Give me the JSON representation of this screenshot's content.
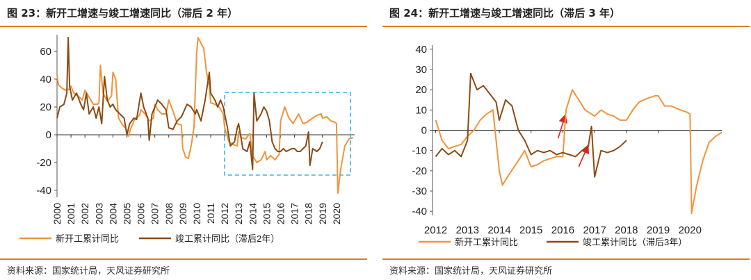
{
  "charts": [
    {
      "title": "图 23：新开工增速与竣工增速同比（滞后 2 年）",
      "source": "资料来源：国家统计局，天风证券研究所"
    },
    {
      "title": "图 24：新开工增速与竣工增速同比（滞后 3 年）",
      "source": "资料来源：国家统计局，天风证券研究所"
    }
  ],
  "colors": {
    "accent": "#e07b1f",
    "series_new": "#f0943a",
    "series_done": "#8b4a14",
    "highlight_box": "#3bb3e0",
    "arrow": "#e0201a"
  },
  "chart_data": [
    {
      "type": "line",
      "title": "",
      "x_ticks": [
        "2000",
        "2001",
        "2002",
        "2003",
        "2004",
        "2005",
        "2006",
        "2007",
        "2008",
        "2009",
        "2010",
        "2011",
        "2012",
        "2013",
        "2014",
        "2015",
        "2016",
        "2017",
        "2018",
        "2019",
        "2020"
      ],
      "y_ticks": [
        "60",
        "40",
        "20",
        "0",
        "-20",
        "-40"
      ],
      "ylim": [
        -45,
        72
      ],
      "xlim": [
        2000,
        2021.3
      ],
      "legend_position": "bottom",
      "annotation": "dashed highlight box 2012–2021",
      "series": [
        {
          "name": "新开工累计同比",
          "points": [
            [
              2000.0,
              43
            ],
            [
              2000.1,
              36
            ],
            [
              2000.3,
              34
            ],
            [
              2000.6,
              32
            ],
            [
              2000.9,
              33
            ],
            [
              2001.0,
              35
            ],
            [
              2001.2,
              30
            ],
            [
              2001.5,
              28
            ],
            [
              2001.8,
              25
            ],
            [
              2002.0,
              32
            ],
            [
              2002.3,
              27
            ],
            [
              2002.6,
              22
            ],
            [
              2002.9,
              22
            ],
            [
              2003.0,
              23
            ],
            [
              2003.1,
              50
            ],
            [
              2003.3,
              30
            ],
            [
              2003.6,
              24
            ],
            [
              2003.9,
              28
            ],
            [
              2004.0,
              45
            ],
            [
              2004.2,
              40
            ],
            [
              2004.4,
              12
            ],
            [
              2004.7,
              7
            ],
            [
              2004.9,
              5
            ],
            [
              2005.0,
              1
            ],
            [
              2005.1,
              -1
            ],
            [
              2005.3,
              5
            ],
            [
              2005.6,
              12
            ],
            [
              2005.9,
              14
            ],
            [
              2006.0,
              18
            ],
            [
              2006.3,
              15
            ],
            [
              2006.6,
              10
            ],
            [
              2006.9,
              12
            ],
            [
              2007.0,
              22
            ],
            [
              2007.2,
              18
            ],
            [
              2007.5,
              15
            ],
            [
              2007.8,
              15
            ],
            [
              2008.0,
              25
            ],
            [
              2008.3,
              17
            ],
            [
              2008.6,
              8
            ],
            [
              2008.9,
              7
            ],
            [
              2009.0,
              -10
            ],
            [
              2009.2,
              -16
            ],
            [
              2009.4,
              -17
            ],
            [
              2009.6,
              -8
            ],
            [
              2009.8,
              5
            ],
            [
              2010.0,
              60
            ],
            [
              2010.1,
              70
            ],
            [
              2010.3,
              66
            ],
            [
              2010.5,
              62
            ],
            [
              2010.7,
              45
            ],
            [
              2010.9,
              35
            ],
            [
              2011.0,
              23
            ],
            [
              2011.3,
              22
            ],
            [
              2011.6,
              20
            ],
            [
              2011.9,
              15
            ],
            [
              2012.0,
              5
            ],
            [
              2012.3,
              -5
            ],
            [
              2012.6,
              -7
            ],
            [
              2012.9,
              -8
            ],
            [
              2013.0,
              2
            ],
            [
              2013.2,
              -2
            ],
            [
              2013.5,
              -3
            ],
            [
              2013.8,
              1
            ],
            [
              2014.0,
              -15
            ],
            [
              2014.3,
              -20
            ],
            [
              2014.6,
              -18
            ],
            [
              2014.9,
              -12
            ],
            [
              2015.0,
              -18
            ],
            [
              2015.3,
              -15
            ],
            [
              2015.6,
              -18
            ],
            [
              2015.9,
              -14
            ],
            [
              2016.0,
              10
            ],
            [
              2016.3,
              20
            ],
            [
              2016.6,
              12
            ],
            [
              2016.9,
              8
            ],
            [
              2017.0,
              10
            ],
            [
              2017.3,
              15
            ],
            [
              2017.6,
              8
            ],
            [
              2017.9,
              9
            ],
            [
              2018.0,
              10
            ],
            [
              2018.3,
              12
            ],
            [
              2018.6,
              14
            ],
            [
              2018.9,
              15
            ],
            [
              2019.0,
              12
            ],
            [
              2019.3,
              13
            ],
            [
              2019.6,
              10
            ],
            [
              2019.9,
              9
            ],
            [
              2020.0,
              8
            ],
            [
              2020.1,
              -42
            ],
            [
              2020.3,
              -25
            ],
            [
              2020.6,
              -8
            ],
            [
              2020.9,
              -3
            ],
            [
              2021.2,
              -2
            ]
          ]
        },
        {
          "name": "竣工累计同比（滞后2年）",
          "points": [
            [
              2000.0,
              12
            ],
            [
              2000.2,
              20
            ],
            [
              2000.5,
              22
            ],
            [
              2000.7,
              30
            ],
            [
              2000.8,
              70
            ],
            [
              2000.9,
              35
            ],
            [
              2001.1,
              25
            ],
            [
              2001.4,
              30
            ],
            [
              2001.7,
              22
            ],
            [
              2001.9,
              18
            ],
            [
              2002.1,
              30
            ],
            [
              2002.3,
              15
            ],
            [
              2002.6,
              20
            ],
            [
              2002.8,
              12
            ],
            [
              2003.0,
              20
            ],
            [
              2003.2,
              8
            ],
            [
              2003.4,
              42
            ],
            [
              2003.6,
              25
            ],
            [
              2003.8,
              20
            ],
            [
              2004.0,
              22
            ],
            [
              2004.2,
              18
            ],
            [
              2004.5,
              15
            ],
            [
              2004.8,
              12
            ],
            [
              2005.0,
              0
            ],
            [
              2005.2,
              8
            ],
            [
              2005.5,
              12
            ],
            [
              2005.7,
              11
            ],
            [
              2006.0,
              30
            ],
            [
              2006.2,
              20
            ],
            [
              2006.5,
              12
            ],
            [
              2006.6,
              -4
            ],
            [
              2006.8,
              15
            ],
            [
              2007.0,
              20
            ],
            [
              2007.2,
              25
            ],
            [
              2007.5,
              22
            ],
            [
              2007.8,
              18
            ],
            [
              2008.0,
              5
            ],
            [
              2008.3,
              4
            ],
            [
              2008.6,
              10
            ],
            [
              2008.9,
              13
            ],
            [
              2009.0,
              15
            ],
            [
              2009.3,
              22
            ],
            [
              2009.6,
              20
            ],
            [
              2009.9,
              15
            ],
            [
              2010.0,
              18
            ],
            [
              2010.3,
              10
            ],
            [
              2010.6,
              25
            ],
            [
              2010.9,
              45
            ],
            [
              2011.0,
              30
            ],
            [
              2011.3,
              25
            ],
            [
              2011.5,
              20
            ],
            [
              2011.7,
              25
            ],
            [
              2011.9,
              20
            ],
            [
              2012.0,
              15
            ],
            [
              2012.2,
              5
            ],
            [
              2012.4,
              -8
            ],
            [
              2012.7,
              -5
            ],
            [
              2012.9,
              5
            ],
            [
              2013.0,
              8
            ],
            [
              2013.3,
              -10
            ],
            [
              2013.6,
              -12
            ],
            [
              2013.8,
              -5
            ],
            [
              2014.0,
              -25
            ],
            [
              2014.1,
              30
            ],
            [
              2014.3,
              10
            ],
            [
              2014.6,
              15
            ],
            [
              2014.8,
              20
            ],
            [
              2015.0,
              17
            ],
            [
              2015.2,
              10
            ],
            [
              2015.4,
              -5
            ],
            [
              2015.6,
              -10
            ],
            [
              2015.8,
              -12
            ],
            [
              2016.0,
              -12
            ],
            [
              2016.2,
              -10
            ],
            [
              2016.4,
              -12
            ],
            [
              2016.6,
              -11
            ],
            [
              2016.8,
              -10
            ],
            [
              2017.0,
              -10
            ],
            [
              2017.2,
              -12
            ],
            [
              2017.4,
              -12
            ],
            [
              2017.6,
              -10
            ],
            [
              2017.8,
              -8
            ],
            [
              2018.0,
              2
            ],
            [
              2018.1,
              -22
            ],
            [
              2018.3,
              -10
            ],
            [
              2018.6,
              -12
            ],
            [
              2018.8,
              -10
            ],
            [
              2019.0,
              -5
            ]
          ]
        }
      ]
    },
    {
      "type": "line",
      "title": "",
      "x_ticks": [
        "2012",
        "2013",
        "2014",
        "2015",
        "2016",
        "2017",
        "2018",
        "2019",
        "2020"
      ],
      "y_ticks": [
        "40",
        "30",
        "20",
        "10",
        "0",
        "-10",
        "-20",
        "-30",
        "-40"
      ],
      "ylim": [
        -42,
        42
      ],
      "xlim": [
        2011.9,
        2021.0
      ],
      "legend_position": "bottom",
      "annotation": "two red arrows near 2016",
      "series": [
        {
          "name": "新开工累计同比",
          "points": [
            [
              2012.0,
              5
            ],
            [
              2012.2,
              -5
            ],
            [
              2012.4,
              -9
            ],
            [
              2012.6,
              -8
            ],
            [
              2012.8,
              -7
            ],
            [
              2013.0,
              -3
            ],
            [
              2013.2,
              0
            ],
            [
              2013.4,
              5
            ],
            [
              2013.6,
              8
            ],
            [
              2013.8,
              10
            ],
            [
              2014.0,
              -20
            ],
            [
              2014.1,
              -27
            ],
            [
              2014.3,
              -22
            ],
            [
              2014.6,
              -15
            ],
            [
              2014.8,
              -10
            ],
            [
              2015.0,
              -18
            ],
            [
              2015.2,
              -17
            ],
            [
              2015.4,
              -15
            ],
            [
              2015.6,
              -14
            ],
            [
              2015.8,
              -13
            ],
            [
              2016.0,
              -13
            ],
            [
              2016.1,
              10
            ],
            [
              2016.3,
              20
            ],
            [
              2016.5,
              15
            ],
            [
              2016.7,
              10
            ],
            [
              2016.9,
              8
            ],
            [
              2017.0,
              7
            ],
            [
              2017.2,
              10
            ],
            [
              2017.4,
              8
            ],
            [
              2017.6,
              7
            ],
            [
              2017.8,
              5
            ],
            [
              2018.0,
              5
            ],
            [
              2018.2,
              10
            ],
            [
              2018.4,
              14
            ],
            [
              2018.7,
              16
            ],
            [
              2018.9,
              17
            ],
            [
              2019.0,
              17
            ],
            [
              2019.2,
              12
            ],
            [
              2019.4,
              12
            ],
            [
              2019.7,
              10
            ],
            [
              2019.9,
              9
            ],
            [
              2020.0,
              8
            ],
            [
              2020.05,
              -41
            ],
            [
              2020.2,
              -28
            ],
            [
              2020.4,
              -15
            ],
            [
              2020.6,
              -6
            ],
            [
              2020.8,
              -3
            ],
            [
              2021.0,
              -1
            ]
          ]
        },
        {
          "name": "竣工累计同比（滞后3年）",
          "points": [
            [
              2012.0,
              -13
            ],
            [
              2012.2,
              -9
            ],
            [
              2012.4,
              -12
            ],
            [
              2012.6,
              -10
            ],
            [
              2012.8,
              -13
            ],
            [
              2013.0,
              -5
            ],
            [
              2013.1,
              28
            ],
            [
              2013.3,
              20
            ],
            [
              2013.5,
              22
            ],
            [
              2013.7,
              18
            ],
            [
              2013.9,
              14
            ],
            [
              2014.0,
              5
            ],
            [
              2014.2,
              15
            ],
            [
              2014.4,
              12
            ],
            [
              2014.6,
              0
            ],
            [
              2014.8,
              -5
            ],
            [
              2015.0,
              -12
            ],
            [
              2015.2,
              -10
            ],
            [
              2015.4,
              -11
            ],
            [
              2015.6,
              -10
            ],
            [
              2015.8,
              -12
            ],
            [
              2016.0,
              -11
            ],
            [
              2016.2,
              -12
            ],
            [
              2016.4,
              -13
            ],
            [
              2016.6,
              -10
            ],
            [
              2016.8,
              -8
            ],
            [
              2016.9,
              2
            ],
            [
              2017.0,
              -23
            ],
            [
              2017.2,
              -10
            ],
            [
              2017.4,
              -11
            ],
            [
              2017.6,
              -10
            ],
            [
              2017.8,
              -8
            ],
            [
              2018.0,
              -5
            ]
          ]
        }
      ]
    }
  ]
}
